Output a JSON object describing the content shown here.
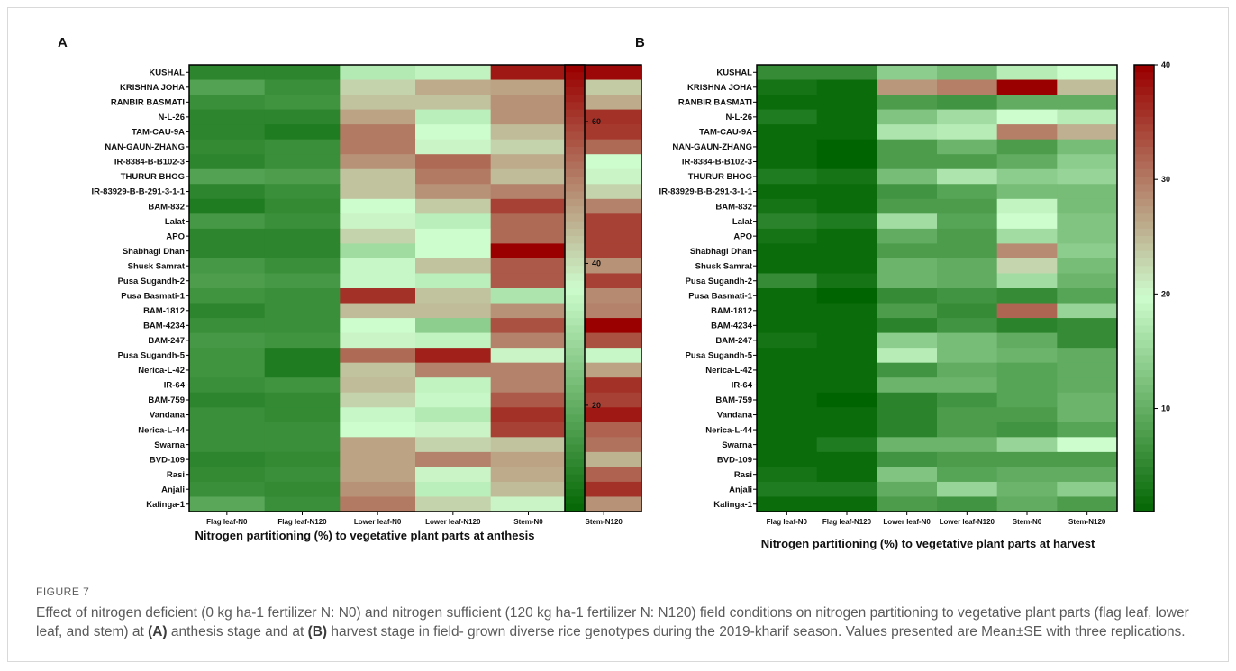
{
  "caption": {
    "label": "FIGURE 7",
    "text_1": "Effect of nitrogen deficient (0 kg ha-1 fertilizer N: N0) and nitrogen sufficient (120 kg ha-1 fertilizer N: N120) field conditions on nitrogen partitioning to vegetative plant parts (flag leaf, lower leaf, and stem) at ",
    "a_ref": "(A)",
    "text_2": " anthesis stage and at ",
    "b_ref": "(B)",
    "text_3": " harvest stage in field- grown diverse rice genotypes during the 2019-kharif season. Values presented are Mean±SE with three replications."
  },
  "colors": {
    "low": "#006400",
    "mid": "#cdfccd",
    "high": "#9a0000"
  },
  "chart_data": [
    {
      "type": "heatmap",
      "panel": "A",
      "title": "Nitrogen partitioning (%) to vegetative plant parts at anthesis",
      "columns": [
        "Flag leaf-N0",
        "Flag leaf-N120",
        "Lower leaf-N0",
        "Lower leaf-N120",
        "Stem-N0",
        "Stem-N120"
      ],
      "rows": [
        "KUSHAL",
        "KRISHNA JOHA",
        "RANBIR BASMATI",
        "N-L-26",
        "TAM-CAU-9A",
        "NAN-GAUN-ZHANG",
        "IR-8384-B-B102-3",
        "THURUR BHOG",
        "IR-83929-B-B-291-3-1-1",
        "BAM-832",
        "Lalat",
        "APO",
        "Shabhagi Dhan",
        "Shusk Samrat",
        "Pusa Sugandh-2",
        "Pusa Basmati-1",
        "BAM-1812",
        "BAM-4234",
        "BAM-247",
        "Pusa Sugandh-5",
        "Nerica-L-42",
        "IR-64",
        "BAM-759",
        "Vandana",
        "Nerica-L-44",
        "Swarna",
        "BVD-109",
        "Rasi",
        "Anjali",
        "Kalinga-1"
      ],
      "values": [
        [
          12,
          12,
          33,
          35,
          65,
          67
        ],
        [
          18,
          14,
          42,
          47,
          48,
          43
        ],
        [
          14,
          15,
          44,
          44,
          50,
          47
        ],
        [
          12,
          12,
          48,
          34,
          50,
          62
        ],
        [
          12,
          10,
          53,
          37,
          45,
          61
        ],
        [
          13,
          14,
          53,
          38,
          42,
          55
        ],
        [
          12,
          14,
          50,
          55,
          47,
          37
        ],
        [
          18,
          17,
          44,
          53,
          45,
          38
        ],
        [
          12,
          14,
          44,
          50,
          52,
          42
        ],
        [
          10,
          13,
          37,
          43,
          60,
          52
        ],
        [
          16,
          14,
          38,
          34,
          55,
          60
        ],
        [
          12,
          12,
          42,
          37,
          55,
          60
        ],
        [
          12,
          12,
          30,
          37,
          68,
          60
        ],
        [
          16,
          14,
          36,
          44,
          57,
          50
        ],
        [
          17,
          16,
          36,
          34,
          57,
          60
        ],
        [
          15,
          14,
          62,
          44,
          32,
          51
        ],
        [
          12,
          14,
          45,
          45,
          50,
          52
        ],
        [
          14,
          14,
          37,
          27,
          58,
          68
        ],
        [
          16,
          15,
          38,
          35,
          52,
          58
        ],
        [
          15,
          10,
          55,
          64,
          38,
          36
        ],
        [
          15,
          10,
          44,
          52,
          52,
          48
        ],
        [
          14,
          15,
          45,
          35,
          52,
          62
        ],
        [
          12,
          13,
          42,
          36,
          57,
          60
        ],
        [
          14,
          13,
          36,
          33,
          62,
          65
        ],
        [
          14,
          14,
          37,
          38,
          60,
          56
        ],
        [
          14,
          14,
          48,
          42,
          44,
          54
        ],
        [
          12,
          13,
          48,
          52,
          48,
          46
        ],
        [
          13,
          14,
          48,
          38,
          47,
          56
        ],
        [
          14,
          13,
          50,
          34,
          45,
          62
        ],
        [
          19,
          14,
          53,
          42,
          38,
          50
        ]
      ],
      "scale": {
        "min": 5,
        "max": 68,
        "mid": 37,
        "ticks": [
          20,
          40,
          60
        ]
      }
    },
    {
      "type": "heatmap",
      "panel": "B",
      "title": "Nitrogen partitioning (%) to vegetative plant parts at harvest",
      "columns": [
        "Flag leaf-N0",
        "Flag leaf-N120",
        "Lower leaf-N0",
        "Lower leaf-N120",
        "Stem-N0",
        "Stem-N120"
      ],
      "rows": [
        "KUSHAL",
        "KRISHNA JOHA",
        "RANBIR BASMATI",
        "N-L-26",
        "TAM-CAU-9A",
        "NAN-GAUN-ZHANG",
        "IR-8384-B-B102-3",
        "THURUR BHOG",
        "IR-83929-B-B-291-3-1-1",
        "BAM-832",
        "Lalat",
        "APO",
        "Shabhagi Dhan",
        "Shusk Samrat",
        "Pusa Sugandh-2",
        "Pusa Basmati-1",
        "BAM-1812",
        "BAM-4234",
        "BAM-247",
        "Pusa Sugandh-5",
        "Nerica-L-42",
        "IR-64",
        "BAM-759",
        "Vandana",
        "Nerica-L-44",
        "Swarna",
        "BVD-109",
        "Rasi",
        "Anjali",
        "Kalinga-1"
      ],
      "values": [
        [
          6,
          6,
          14,
          12,
          18,
          20
        ],
        [
          3,
          2,
          28,
          30,
          40,
          25
        ],
        [
          2,
          2,
          8,
          7,
          10,
          10
        ],
        [
          4,
          2,
          13,
          16,
          20,
          18
        ],
        [
          2,
          2,
          17,
          18,
          30,
          26
        ],
        [
          2,
          1,
          8,
          11,
          8,
          12
        ],
        [
          2,
          1,
          8,
          8,
          10,
          14
        ],
        [
          4,
          3,
          12,
          17,
          14,
          15
        ],
        [
          2,
          2,
          7,
          9,
          12,
          12
        ],
        [
          3,
          2,
          8,
          8,
          19,
          12
        ],
        [
          5,
          4,
          16,
          9,
          20,
          13
        ],
        [
          3,
          2,
          10,
          8,
          16,
          13
        ],
        [
          2,
          2,
          8,
          8,
          29,
          14
        ],
        [
          2,
          2,
          11,
          10,
          23,
          12
        ],
        [
          6,
          3,
          11,
          10,
          16,
          11
        ],
        [
          2,
          1,
          6,
          7,
          6,
          9
        ],
        [
          2,
          2,
          8,
          6,
          32,
          15
        ],
        [
          2,
          2,
          5,
          7,
          5,
          6
        ],
        [
          3,
          2,
          14,
          12,
          10,
          6
        ],
        [
          2,
          2,
          18,
          12,
          11,
          10
        ],
        [
          2,
          2,
          7,
          10,
          9,
          10
        ],
        [
          2,
          2,
          11,
          11,
          9,
          10
        ],
        [
          2,
          1,
          5,
          7,
          9,
          11
        ],
        [
          2,
          2,
          5,
          8,
          8,
          11
        ],
        [
          2,
          2,
          5,
          8,
          7,
          9
        ],
        [
          2,
          4,
          11,
          11,
          15,
          20
        ],
        [
          2,
          2,
          7,
          8,
          8,
          8
        ],
        [
          3,
          2,
          13,
          9,
          10,
          10
        ],
        [
          4,
          4,
          10,
          15,
          11,
          14
        ],
        [
          2,
          2,
          8,
          7,
          10,
          8
        ]
      ],
      "scale": {
        "min": 1,
        "max": 40,
        "mid": 20,
        "ticks": [
          10,
          20,
          30,
          40
        ]
      }
    }
  ]
}
